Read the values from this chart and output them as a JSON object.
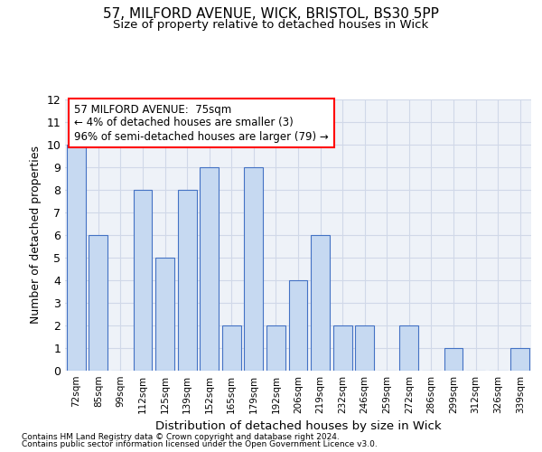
{
  "title1": "57, MILFORD AVENUE, WICK, BRISTOL, BS30 5PP",
  "title2": "Size of property relative to detached houses in Wick",
  "xlabel": "Distribution of detached houses by size in Wick",
  "ylabel": "Number of detached properties",
  "categories": [
    "72sqm",
    "85sqm",
    "99sqm",
    "112sqm",
    "125sqm",
    "139sqm",
    "152sqm",
    "165sqm",
    "179sqm",
    "192sqm",
    "206sqm",
    "219sqm",
    "232sqm",
    "246sqm",
    "259sqm",
    "272sqm",
    "286sqm",
    "299sqm",
    "312sqm",
    "326sqm",
    "339sqm"
  ],
  "values": [
    10,
    6,
    0,
    8,
    5,
    8,
    9,
    2,
    9,
    2,
    4,
    6,
    2,
    2,
    0,
    2,
    0,
    1,
    0,
    0,
    1
  ],
  "bar_color": "#c6d9f1",
  "bar_edge_color": "#4472c4",
  "annotation_line1": "57 MILFORD AVENUE:  75sqm",
  "annotation_line2": "← 4% of detached houses are smaller (3)",
  "annotation_line3": "96% of semi-detached houses are larger (79) →",
  "ylim": [
    0,
    12
  ],
  "yticks": [
    0,
    1,
    2,
    3,
    4,
    5,
    6,
    7,
    8,
    9,
    10,
    11,
    12
  ],
  "footnote1": "Contains HM Land Registry data © Crown copyright and database right 2024.",
  "footnote2": "Contains public sector information licensed under the Open Government Licence v3.0.",
  "grid_color": "#d0d8e8",
  "bg_color": "#eef2f8"
}
